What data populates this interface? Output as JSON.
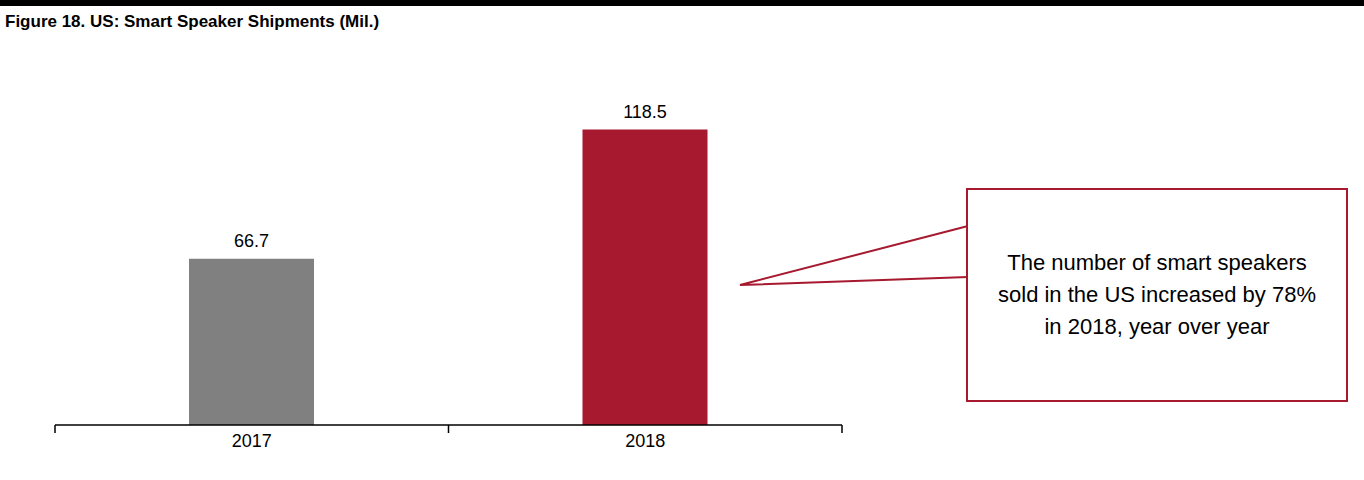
{
  "chart_data": {
    "type": "bar",
    "title": "Figure 18. US: Smart Speaker Shipments (Mil.)",
    "categories": [
      "2017",
      "2018"
    ],
    "values": [
      66.7,
      118.5
    ],
    "colors": [
      "#808080",
      "#a6192e"
    ],
    "ylim": [
      0,
      140
    ],
    "data_labels": true,
    "tick_labels": "x",
    "grid": false,
    "annotation": "The number of smart speakers sold in the US increased by 78% in 2018, year over year"
  }
}
